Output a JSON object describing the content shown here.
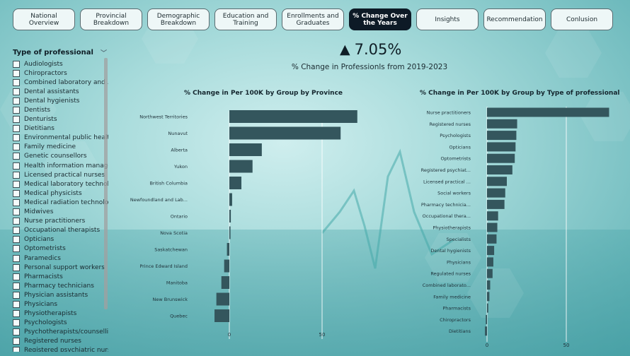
{
  "nav": {
    "tabs": [
      {
        "label": "National Overview",
        "width": 88
      },
      {
        "label": "Provincial Breakdown",
        "width": 88
      },
      {
        "label": "Demographic Breakdown",
        "width": 88
      },
      {
        "label": "Education and Training",
        "width": 88
      },
      {
        "label": "Enrollments and Graduates",
        "width": 88
      },
      {
        "label": "% Change Over the Years",
        "width": 88,
        "active": true
      },
      {
        "label": "Insights",
        "width": 88
      },
      {
        "label": "Recommendation",
        "width": 88
      },
      {
        "label": "Conlusion",
        "width": 88
      }
    ]
  },
  "slicer": {
    "title": "Type of professional",
    "items": [
      "Audiologists",
      "Chiropractors",
      "Combined laboratory and ...",
      "Dental assistants",
      "Dental hygienists",
      "Dentists",
      "Denturists",
      "Dietitians",
      "Environmental public healt...",
      "Family medicine",
      "Genetic counsellors",
      "Health information manage...",
      "Licensed practical nurses",
      "Medical laboratory technol...",
      "Medical physicists",
      "Medical radiation technolo...",
      "Midwives",
      "Nurse practitioners",
      "Occupational therapists",
      "Opticians",
      "Optometrists",
      "Paramedics",
      "Personal support workers",
      "Pharmacists",
      "Pharmacy technicians",
      "Physician assistants",
      "Physicians",
      "Physiotherapists",
      "Psychologists",
      "Psychotherapists/counselli...",
      "Registered nurses",
      "Registered psychiatric nurses"
    ]
  },
  "kpi": {
    "arrow": "▲",
    "value": "7.05%",
    "subtitle": "% Change in Professionls from 2019-2023"
  },
  "chart_data": [
    {
      "type": "bar",
      "title": "% Change in Per 100K by Group by Province",
      "categories": [
        "Northwest Territories",
        "Nunavut",
        "Alberta",
        "Yukon",
        "British Columbia",
        "Newfoundland and Lab...",
        "Ontario",
        "Nova Scotia",
        "Saskatchewan",
        "Prince Edward Island",
        "Manitoba",
        "New Brunswick",
        "Quebec"
      ],
      "values": [
        69,
        60,
        17.5,
        12.5,
        6.5,
        1.5,
        0.8,
        0.6,
        -1.3,
        -2.8,
        -4.3,
        -7,
        -8
      ],
      "xticks": [
        0,
        50
      ]
    },
    {
      "type": "bar",
      "title": "% Change in Per 100K by Group by Type of professional",
      "categories": [
        "Nurse practitioners",
        "Registered nurses",
        "Psychologists",
        "Opticians",
        "Optometrists",
        "Registered psychiat...",
        "Licensed practical ...",
        "Social workers",
        "Pharmacy technicia...",
        "Occupational thera...",
        "Physiotherapists",
        "Specialists",
        "Dental hygienists",
        "Physicians",
        "Regulated nurses",
        "Combined laborato...",
        "Family medicine",
        "Pharmacists",
        "Chiropractors",
        "Dietitians"
      ],
      "values": [
        77,
        19,
        18.5,
        18,
        17.5,
        16,
        12.5,
        11.5,
        11,
        7,
        6.5,
        6,
        4.5,
        4,
        3.5,
        2,
        1.5,
        0.8,
        -0.8,
        -1.3
      ],
      "xticks": [
        0,
        50
      ]
    }
  ],
  "colors": {
    "bar": "#34565d",
    "active_tab": "#0d1a26"
  }
}
